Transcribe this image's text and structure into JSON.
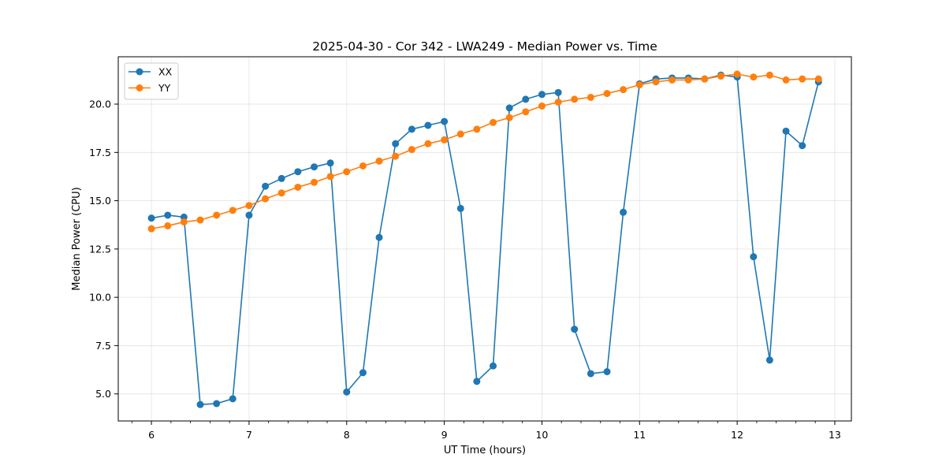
{
  "chart_data": {
    "type": "line",
    "title": "2025-04-30 - Cor 342 - LWA249 - Median Power vs. Time",
    "xlabel": "UT Time (hours)",
    "ylabel": "Median Power (CPU)",
    "xlim": [
      5.66,
      13.17
    ],
    "ylim": [
      3.6,
      22.45
    ],
    "xticks": [
      6,
      7,
      8,
      9,
      10,
      11,
      12,
      13
    ],
    "yticks": [
      5.0,
      7.5,
      10.0,
      12.5,
      15.0,
      17.5,
      20.0
    ],
    "ytick_labels": [
      "5.0",
      "7.5",
      "10.0",
      "12.5",
      "15.0",
      "17.5",
      "20.0"
    ],
    "grid": true,
    "legend": "top-left",
    "x": [
      6.0,
      6.167,
      6.333,
      6.5,
      6.667,
      6.833,
      7.0,
      7.167,
      7.333,
      7.5,
      7.667,
      7.833,
      8.0,
      8.167,
      8.333,
      8.5,
      8.667,
      8.833,
      9.0,
      9.167,
      9.333,
      9.5,
      9.667,
      9.833,
      10.0,
      10.167,
      10.333,
      10.5,
      10.667,
      10.833,
      11.0,
      11.167,
      11.333,
      11.5,
      11.667,
      11.833,
      12.0,
      12.167,
      12.333,
      12.5,
      12.667,
      12.833
    ],
    "series": [
      {
        "name": "XX",
        "color": "#1f77b4",
        "values": [
          14.1,
          14.25,
          14.15,
          4.45,
          4.5,
          4.75,
          14.25,
          15.75,
          16.15,
          16.5,
          16.75,
          16.95,
          5.1,
          6.1,
          13.1,
          17.95,
          18.7,
          18.9,
          19.1,
          14.6,
          5.65,
          6.45,
          19.8,
          20.25,
          20.5,
          20.6,
          8.35,
          6.05,
          6.15,
          14.4,
          21.05,
          21.3,
          21.35,
          21.35,
          21.3,
          21.5,
          21.4,
          12.1,
          6.75,
          18.6,
          17.85,
          21.15
        ]
      },
      {
        "name": "YY",
        "color": "#ff7f0e",
        "values": [
          13.55,
          13.7,
          13.9,
          14.0,
          14.25,
          14.5,
          14.75,
          15.1,
          15.4,
          15.7,
          15.95,
          16.25,
          16.5,
          16.8,
          17.05,
          17.3,
          17.65,
          17.95,
          18.15,
          18.45,
          18.7,
          19.05,
          19.3,
          19.6,
          19.9,
          20.1,
          20.25,
          20.35,
          20.55,
          20.75,
          21.0,
          21.15,
          21.25,
          21.25,
          21.3,
          21.45,
          21.55,
          21.4,
          21.5,
          21.25,
          21.3,
          21.3
        ]
      }
    ]
  }
}
